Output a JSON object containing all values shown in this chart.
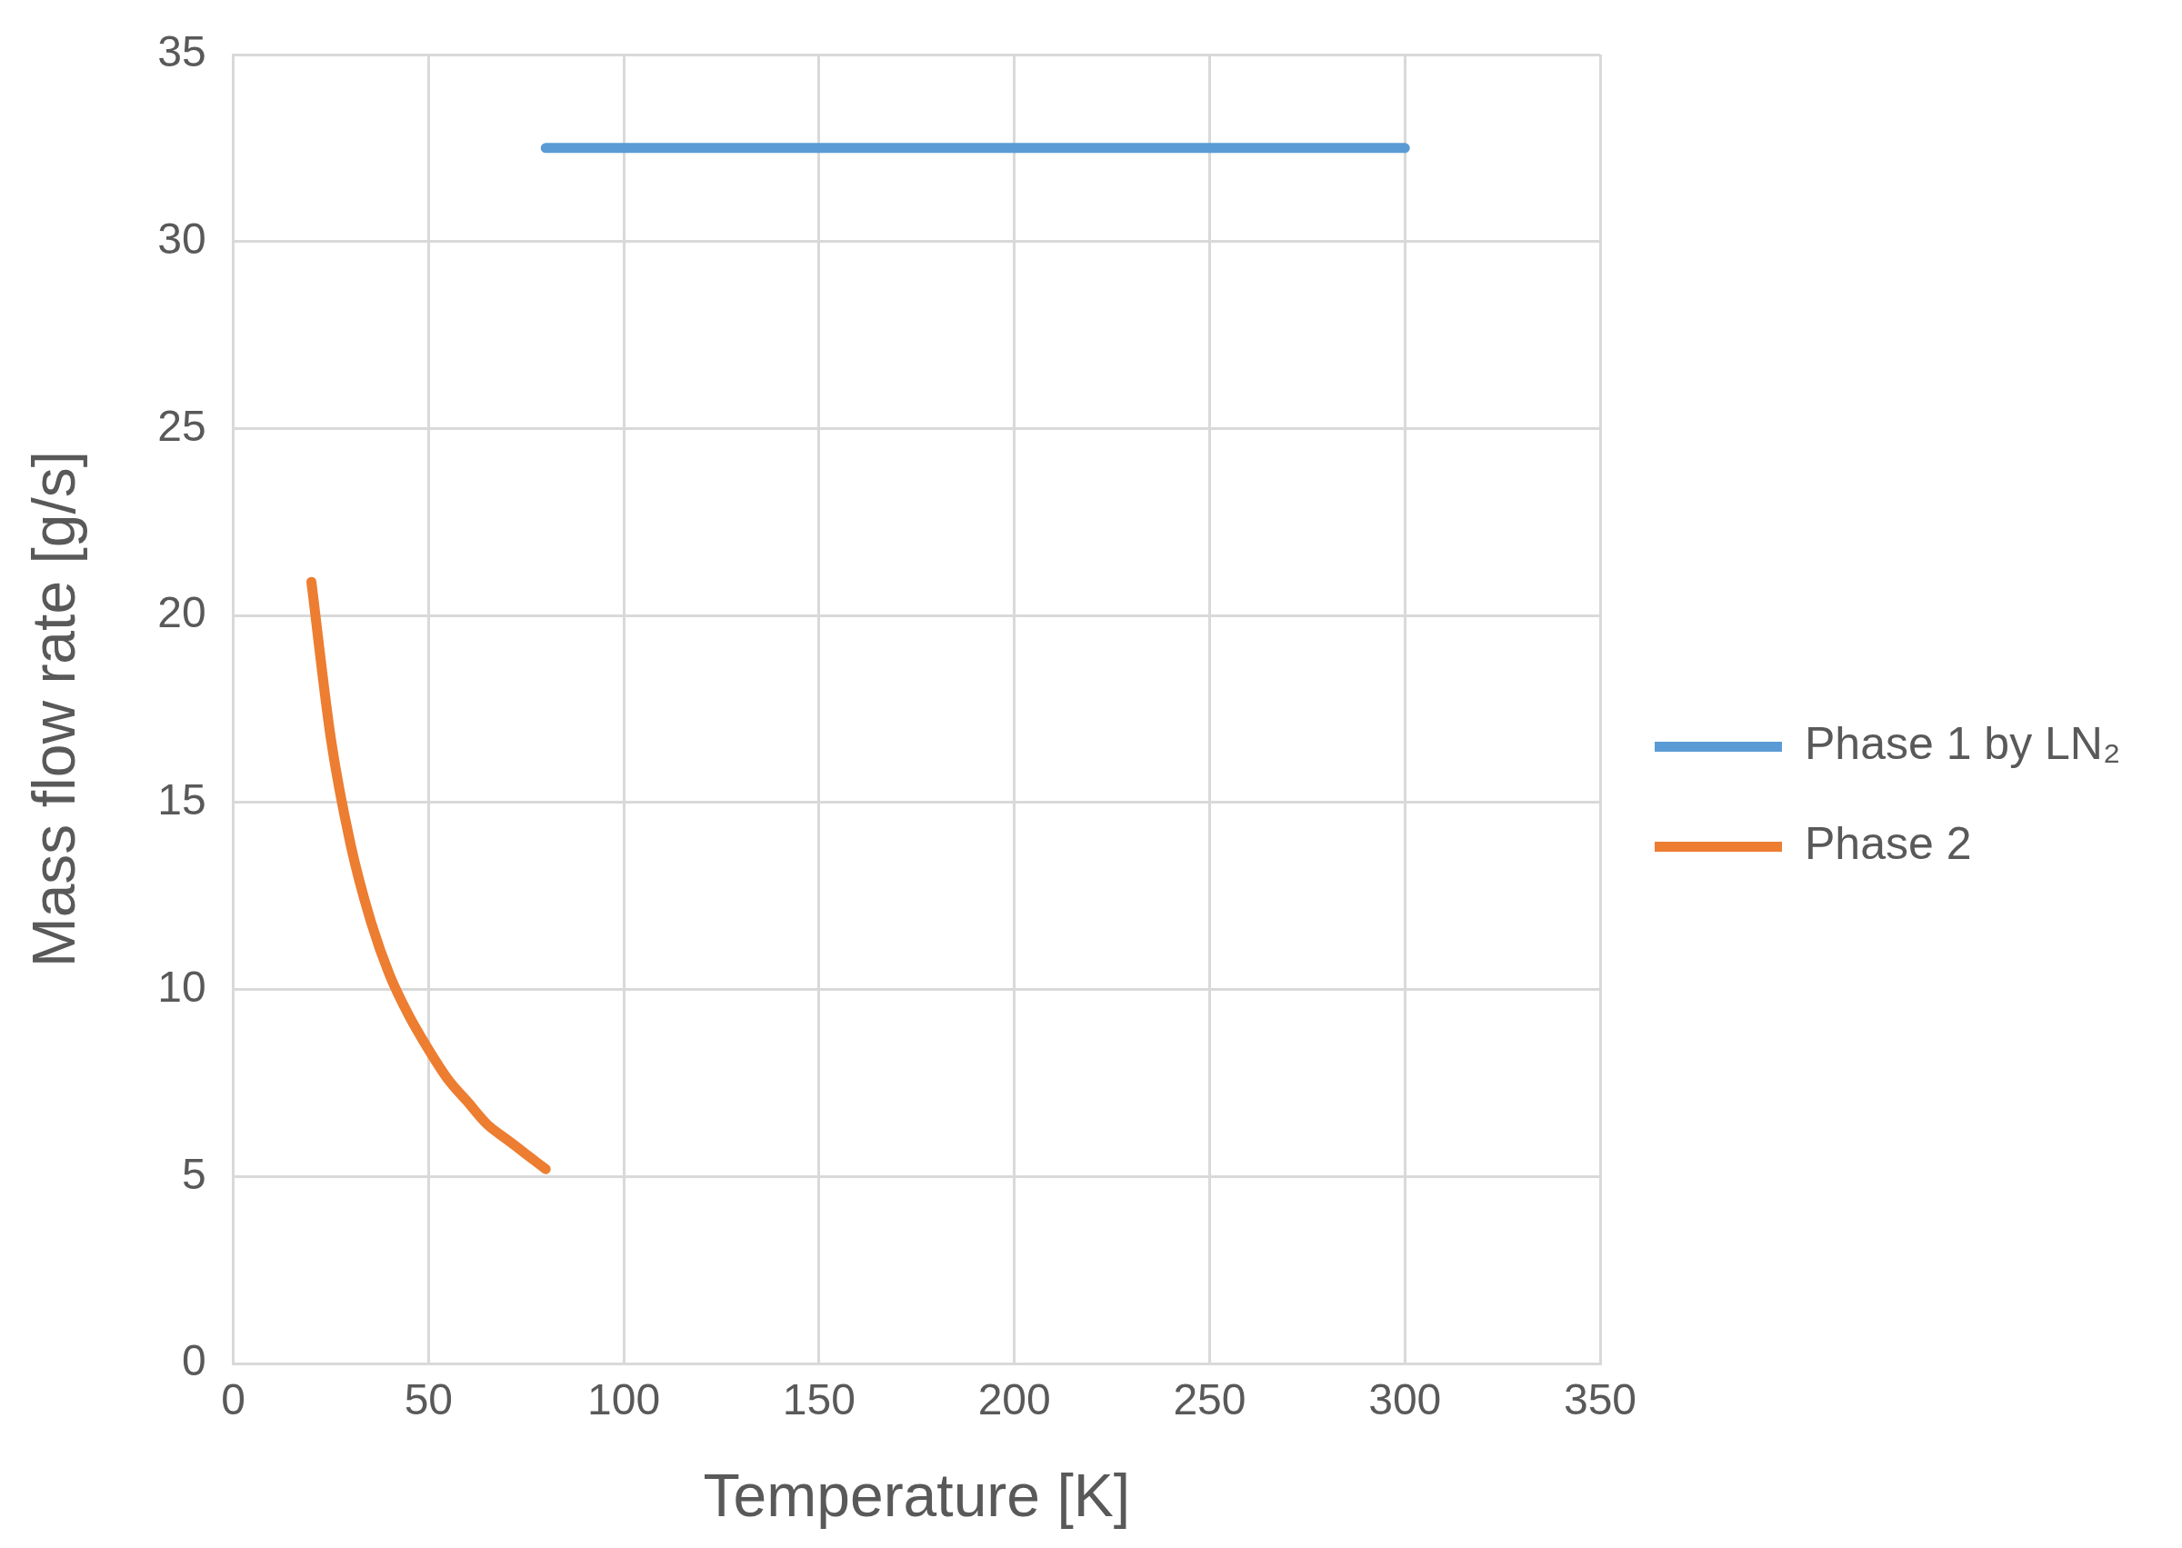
{
  "chart_data": {
    "type": "line",
    "xlabel": "Temperature [K]",
    "ylabel": "Mass flow rate [g/s]",
    "xlim": [
      0,
      350
    ],
    "xticks": [
      0,
      50,
      100,
      150,
      200,
      250,
      300,
      350
    ],
    "ylim": [
      0,
      35
    ],
    "yticks": [
      0,
      5,
      10,
      15,
      20,
      25,
      30,
      35
    ],
    "grid": true,
    "legend": "right",
    "marker": "none",
    "line_style": "solid",
    "series": [
      {
        "name": "Phase 1 by LN₂",
        "color": "#5b9bd5",
        "x": [
          80,
          300
        ],
        "values": [
          32.5,
          32.5
        ]
      },
      {
        "name": "Phase 2",
        "color": "#ed7d31",
        "x": [
          20,
          25,
          30,
          35,
          40,
          45,
          50,
          55,
          60,
          65,
          70,
          75,
          80
        ],
        "values": [
          20.9,
          16.7,
          13.9,
          11.9,
          10.4,
          9.3,
          8.4,
          7.6,
          7.0,
          6.4,
          6.0,
          5.6,
          5.2
        ]
      }
    ]
  }
}
